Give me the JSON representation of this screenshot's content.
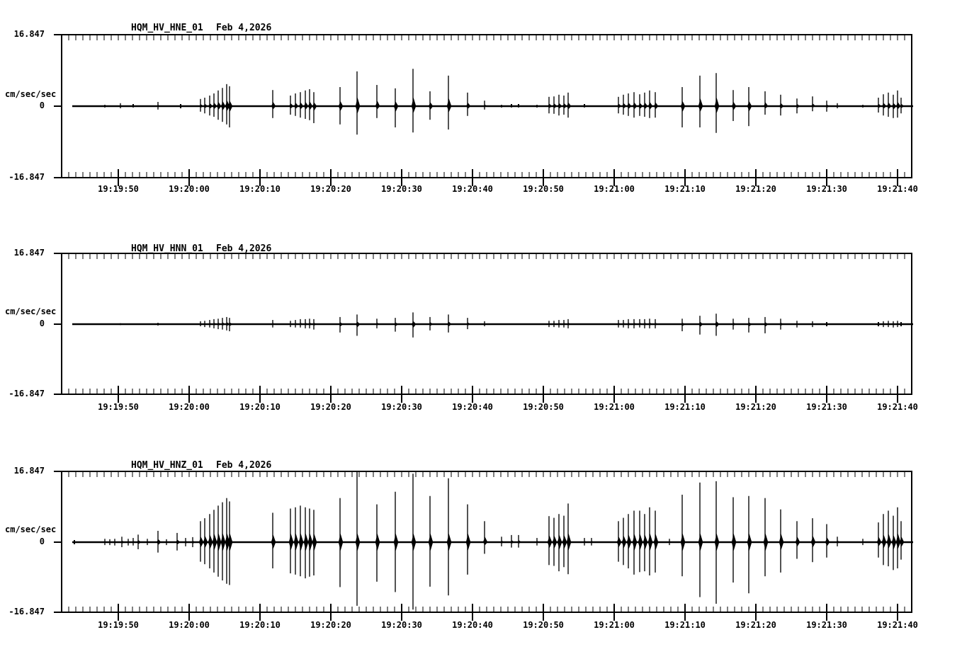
{
  "figure": {
    "background_color": "#ffffff",
    "line_color": "#000000",
    "panel_count": 3
  },
  "chart_data": [
    {
      "type": "line",
      "subtype": "seismogram-helicorder-trace",
      "title": "HQM_HV_HNE_01",
      "date_label": "Feb 4,2026",
      "ylabel": "cm/sec/sec",
      "ylim": [
        -16.847,
        16.847
      ],
      "y_tick_labels": [
        "16.847",
        "0",
        "-16.847"
      ],
      "x_tick_labels": [
        "19:19:50",
        "19:20:00",
        "19:20:10",
        "19:20:20",
        "19:20:30",
        "19:20:40",
        "19:20:50",
        "19:21:00",
        "19:21:10",
        "19:21:20",
        "19:21:30",
        "19:21:40"
      ],
      "x_window": {
        "span_seconds": 120,
        "first_tick_offset_seconds": 8,
        "major_tick_seconds": 10,
        "minor_tick_seconds": 1
      },
      "spikes_t_up_down": [
        [
          6.1,
          0.3,
          0.3
        ],
        [
          8.3,
          0.7,
          0.5
        ],
        [
          10.1,
          0.5,
          0.3
        ],
        [
          13.6,
          1.0,
          0.8
        ],
        [
          16.8,
          0.5,
          0.5
        ],
        [
          19.6,
          1.7,
          1.3
        ],
        [
          20.2,
          2.0,
          1.7
        ],
        [
          20.9,
          2.5,
          2.2
        ],
        [
          21.5,
          3.0,
          2.5
        ],
        [
          22.1,
          3.7,
          3.2
        ],
        [
          22.7,
          4.3,
          3.7
        ],
        [
          23.3,
          5.2,
          4.3
        ],
        [
          23.7,
          4.7,
          5.0
        ],
        [
          29.8,
          3.8,
          2.8
        ],
        [
          32.3,
          2.5,
          2.0
        ],
        [
          33.0,
          3.0,
          2.3
        ],
        [
          33.7,
          3.3,
          2.7
        ],
        [
          34.4,
          3.7,
          3.0
        ],
        [
          35.0,
          4.0,
          3.3
        ],
        [
          35.6,
          3.3,
          4.0
        ],
        [
          39.3,
          4.5,
          4.3
        ],
        [
          41.7,
          8.2,
          6.7
        ],
        [
          44.5,
          5.0,
          2.8
        ],
        [
          47.1,
          4.2,
          5.0
        ],
        [
          49.6,
          8.8,
          6.2
        ],
        [
          52.0,
          3.5,
          3.2
        ],
        [
          54.6,
          7.2,
          5.5
        ],
        [
          57.3,
          3.2,
          2.3
        ],
        [
          59.7,
          1.3,
          0.8
        ],
        [
          62.1,
          0.3,
          0.3
        ],
        [
          63.5,
          0.5,
          0.3
        ],
        [
          64.5,
          0.5,
          0.3
        ],
        [
          67.1,
          0.3,
          0.3
        ],
        [
          68.8,
          2.2,
          1.7
        ],
        [
          69.5,
          2.3,
          1.8
        ],
        [
          70.2,
          2.7,
          2.2
        ],
        [
          70.9,
          2.5,
          2.0
        ],
        [
          71.5,
          3.2,
          2.7
        ],
        [
          73.8,
          0.5,
          0.3
        ],
        [
          78.6,
          2.2,
          1.7
        ],
        [
          79.3,
          2.7,
          2.0
        ],
        [
          80.0,
          3.0,
          2.3
        ],
        [
          80.8,
          3.3,
          2.7
        ],
        [
          81.6,
          2.8,
          2.3
        ],
        [
          82.3,
          3.2,
          2.5
        ],
        [
          83.0,
          3.7,
          2.8
        ],
        [
          83.8,
          3.3,
          2.7
        ],
        [
          87.6,
          4.5,
          5.0
        ],
        [
          90.1,
          7.2,
          5.0
        ],
        [
          92.4,
          7.8,
          6.3
        ],
        [
          94.8,
          3.8,
          3.5
        ],
        [
          97.0,
          4.5,
          4.7
        ],
        [
          99.3,
          3.5,
          2.0
        ],
        [
          101.5,
          2.7,
          2.2
        ],
        [
          103.8,
          1.8,
          1.7
        ],
        [
          106.0,
          2.3,
          1.2
        ],
        [
          108.0,
          1.3,
          1.3
        ],
        [
          109.5,
          0.7,
          0.5
        ],
        [
          113.1,
          0.3,
          0.3
        ],
        [
          115.3,
          2.0,
          1.5
        ],
        [
          116.0,
          2.8,
          2.2
        ],
        [
          116.7,
          3.2,
          2.5
        ],
        [
          117.4,
          2.7,
          2.8
        ],
        [
          118.0,
          3.7,
          2.7
        ],
        [
          118.5,
          2.0,
          1.7
        ]
      ]
    },
    {
      "type": "line",
      "subtype": "seismogram-helicorder-trace",
      "title": "HQM_HV_HNN_01",
      "date_label": "Feb 4,2026",
      "ylabel": "cm/sec/sec",
      "ylim": [
        -16.847,
        16.847
      ],
      "y_tick_labels": [
        "16.847",
        "0",
        "-16.847"
      ],
      "x_tick_labels": [
        "19:19:50",
        "19:20:00",
        "19:20:10",
        "19:20:20",
        "19:20:30",
        "19:20:40",
        "19:20:50",
        "19:21:00",
        "19:21:10",
        "19:21:20",
        "19:21:30",
        "19:21:40"
      ],
      "x_window": {
        "span_seconds": 120,
        "first_tick_offset_seconds": 8,
        "major_tick_seconds": 10,
        "minor_tick_seconds": 1
      },
      "spikes_t_up_down": [
        [
          8.3,
          0.2,
          0.2
        ],
        [
          13.6,
          0.3,
          0.3
        ],
        [
          19.6,
          0.7,
          0.5
        ],
        [
          20.2,
          0.8,
          0.7
        ],
        [
          20.9,
          1.0,
          0.8
        ],
        [
          21.5,
          1.2,
          1.0
        ],
        [
          22.1,
          1.3,
          1.2
        ],
        [
          22.7,
          1.5,
          1.3
        ],
        [
          23.3,
          1.7,
          1.5
        ],
        [
          23.7,
          1.5,
          1.7
        ],
        [
          29.8,
          1.0,
          0.8
        ],
        [
          32.3,
          0.8,
          0.7
        ],
        [
          33.0,
          1.0,
          0.8
        ],
        [
          33.7,
          1.2,
          0.8
        ],
        [
          34.4,
          1.2,
          1.0
        ],
        [
          35.0,
          1.3,
          1.0
        ],
        [
          35.6,
          1.2,
          1.3
        ],
        [
          39.3,
          1.7,
          2.0
        ],
        [
          41.7,
          2.3,
          2.8
        ],
        [
          44.5,
          1.3,
          1.0
        ],
        [
          47.1,
          1.5,
          1.8
        ],
        [
          49.6,
          2.8,
          3.2
        ],
        [
          52.0,
          1.7,
          1.5
        ],
        [
          54.6,
          2.3,
          2.0
        ],
        [
          57.3,
          1.5,
          1.2
        ],
        [
          59.7,
          0.7,
          0.5
        ],
        [
          68.8,
          0.8,
          0.7
        ],
        [
          69.5,
          0.8,
          0.7
        ],
        [
          70.2,
          1.0,
          0.8
        ],
        [
          70.9,
          1.0,
          0.8
        ],
        [
          71.5,
          1.2,
          1.0
        ],
        [
          78.6,
          1.0,
          0.8
        ],
        [
          79.3,
          1.0,
          0.8
        ],
        [
          80.0,
          1.2,
          1.0
        ],
        [
          80.8,
          1.2,
          1.0
        ],
        [
          81.6,
          1.2,
          0.8
        ],
        [
          82.3,
          1.2,
          1.0
        ],
        [
          83.0,
          1.3,
          1.0
        ],
        [
          83.8,
          1.2,
          1.0
        ],
        [
          87.6,
          1.3,
          1.7
        ],
        [
          90.1,
          2.0,
          2.5
        ],
        [
          92.4,
          2.5,
          2.8
        ],
        [
          94.8,
          1.3,
          1.3
        ],
        [
          97.0,
          1.5,
          2.0
        ],
        [
          99.3,
          1.7,
          2.2
        ],
        [
          101.5,
          1.3,
          1.3
        ],
        [
          103.8,
          0.8,
          0.8
        ],
        [
          106.0,
          0.7,
          0.7
        ],
        [
          108.0,
          0.5,
          0.5
        ],
        [
          115.3,
          0.5,
          0.5
        ],
        [
          116.0,
          0.7,
          0.7
        ],
        [
          116.7,
          0.8,
          0.7
        ],
        [
          117.4,
          0.7,
          0.8
        ],
        [
          118.0,
          0.8,
          0.7
        ],
        [
          118.5,
          0.5,
          0.5
        ]
      ]
    },
    {
      "type": "line",
      "subtype": "seismogram-helicorder-trace",
      "title": "HQM_HV_HNZ_01",
      "date_label": "Feb 4,2026",
      "ylabel": "cm/sec/sec",
      "ylim": [
        -16.847,
        16.847
      ],
      "y_tick_labels": [
        "16.847",
        "0",
        "-16.847"
      ],
      "x_tick_labels": [
        "19:19:50",
        "19:20:00",
        "19:20:10",
        "19:20:20",
        "19:20:30",
        "19:20:40",
        "19:20:50",
        "19:21:00",
        "19:21:10",
        "19:21:20",
        "19:21:30",
        "19:21:40"
      ],
      "x_window": {
        "span_seconds": 120,
        "first_tick_offset_seconds": 8,
        "major_tick_seconds": 10,
        "minor_tick_seconds": 1
      },
      "spikes_t_up_down": [
        [
          1.8,
          0.5,
          0.5
        ],
        [
          6.1,
          0.8,
          0.7
        ],
        [
          6.8,
          0.7,
          0.7
        ],
        [
          7.5,
          0.8,
          0.8
        ],
        [
          8.5,
          1.3,
          1.2
        ],
        [
          9.4,
          0.8,
          0.8
        ],
        [
          10.1,
          1.0,
          0.8
        ],
        [
          10.8,
          1.8,
          1.7
        ],
        [
          12.1,
          0.8,
          0.7
        ],
        [
          13.6,
          2.7,
          2.5
        ],
        [
          14.8,
          0.7,
          0.7
        ],
        [
          16.3,
          2.2,
          2.0
        ],
        [
          17.5,
          1.0,
          1.0
        ],
        [
          18.5,
          1.2,
          1.2
        ],
        [
          19.6,
          5.0,
          4.7
        ],
        [
          20.2,
          5.7,
          5.3
        ],
        [
          20.9,
          6.7,
          6.3
        ],
        [
          21.5,
          7.7,
          7.3
        ],
        [
          22.1,
          8.7,
          8.3
        ],
        [
          22.7,
          9.5,
          9.2
        ],
        [
          23.3,
          10.5,
          10.0
        ],
        [
          23.7,
          9.7,
          10.3
        ],
        [
          29.8,
          7.0,
          6.3
        ],
        [
          32.3,
          8.0,
          7.5
        ],
        [
          33.0,
          8.3,
          7.8
        ],
        [
          33.7,
          8.7,
          8.2
        ],
        [
          34.4,
          8.3,
          8.7
        ],
        [
          35.0,
          8.0,
          8.3
        ],
        [
          35.6,
          7.7,
          8.0
        ],
        [
          39.3,
          10.5,
          10.8
        ],
        [
          41.7,
          16.7,
          15.3
        ],
        [
          44.5,
          9.0,
          9.5
        ],
        [
          47.1,
          12.0,
          12.0
        ],
        [
          49.6,
          16.3,
          16.2
        ],
        [
          52.0,
          11.0,
          10.7
        ],
        [
          54.6,
          15.2,
          12.8
        ],
        [
          57.3,
          9.0,
          7.8
        ],
        [
          59.7,
          5.0,
          2.8
        ],
        [
          62.1,
          1.3,
          1.0
        ],
        [
          63.5,
          1.7,
          1.3
        ],
        [
          64.5,
          1.7,
          1.3
        ],
        [
          67.1,
          1.0,
          0.8
        ],
        [
          68.8,
          6.2,
          5.5
        ],
        [
          69.5,
          5.8,
          5.7
        ],
        [
          70.2,
          6.7,
          7.0
        ],
        [
          70.9,
          6.3,
          6.0
        ],
        [
          71.5,
          9.2,
          7.7
        ],
        [
          73.8,
          1.0,
          0.8
        ],
        [
          74.8,
          1.0,
          0.8
        ],
        [
          78.6,
          5.0,
          4.7
        ],
        [
          79.3,
          5.8,
          5.5
        ],
        [
          80.0,
          6.7,
          6.3
        ],
        [
          80.8,
          7.5,
          7.8
        ],
        [
          81.6,
          7.5,
          7.2
        ],
        [
          82.3,
          6.7,
          7.0
        ],
        [
          83.0,
          8.3,
          8.0
        ],
        [
          83.8,
          7.5,
          7.3
        ],
        [
          85.8,
          0.8,
          0.7
        ],
        [
          87.6,
          11.3,
          8.2
        ],
        [
          90.1,
          14.2,
          13.2
        ],
        [
          92.4,
          14.5,
          14.8
        ],
        [
          94.8,
          10.7,
          9.7
        ],
        [
          97.0,
          11.0,
          12.3
        ],
        [
          99.3,
          10.5,
          8.2
        ],
        [
          101.5,
          7.8,
          7.3
        ],
        [
          103.8,
          5.0,
          4.0
        ],
        [
          106.0,
          5.7,
          4.8
        ],
        [
          108.0,
          4.3,
          3.7
        ],
        [
          109.5,
          1.3,
          1.0
        ],
        [
          113.1,
          0.8,
          0.7
        ],
        [
          115.3,
          4.7,
          3.7
        ],
        [
          116.0,
          6.7,
          5.5
        ],
        [
          116.7,
          7.5,
          5.8
        ],
        [
          117.4,
          6.3,
          6.7
        ],
        [
          118.0,
          8.3,
          6.3
        ],
        [
          118.5,
          5.0,
          4.2
        ]
      ]
    }
  ]
}
